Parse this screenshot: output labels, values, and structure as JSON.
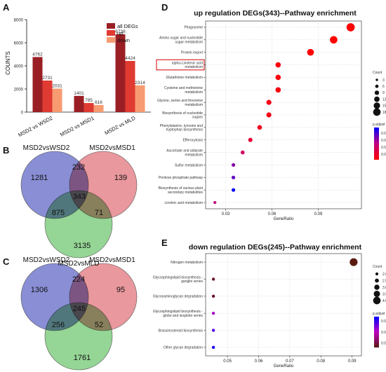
{
  "panels": {
    "a": "A",
    "b": "B",
    "c": "C",
    "d": "D",
    "e": "E"
  },
  "colors": {
    "all": "#9a1f25",
    "up": "#e03b32",
    "down": "#f79b72",
    "venn_wsd2": "#5c63c5",
    "venn_msd1": "#e07077",
    "venn_mld": "#6cc56c",
    "highlight_box": "#d40000"
  },
  "chart_data": [
    {
      "type": "bar",
      "title": "",
      "xlabel": "",
      "ylabel": "COUNTS",
      "ylim": [
        0,
        8000
      ],
      "yticks": [
        0,
        2000,
        4000,
        6000,
        8000
      ],
      "categories": [
        "MSD2 vs WSD2",
        "MSD2 vs MSD1",
        "MSD2 vs MLD"
      ],
      "series": [
        {
          "name": "all DEGs",
          "values": [
            4762,
            1401,
            6738
          ]
        },
        {
          "name": "up",
          "values": [
            2731,
            785,
            4424
          ]
        },
        {
          "name": "down",
          "values": [
            2031,
            616,
            2314
          ]
        }
      ],
      "legend": "top-right"
    },
    {
      "type": "venn",
      "sets": [
        "MSD2vsWSD2",
        "MSD2vsMSD1",
        "MSD2vsMLD"
      ],
      "regions": {
        "wsd2_only": 1281,
        "msd1_only": 139,
        "mld_only": 3135,
        "wsd2_msd1": 232,
        "wsd2_mld": 875,
        "msd1_mld": 71,
        "all_three": 343
      }
    },
    {
      "type": "venn",
      "sets": [
        "MSD2vsWSD2",
        "MSD2vsMSD1",
        "MSD2vsMLD"
      ],
      "regions": {
        "wsd2_only": 1306,
        "msd1_only": 95,
        "mld_only": 1761,
        "wsd2_msd1": 224,
        "wsd2_mld": 256,
        "msd1_mld": 52,
        "all_three": 245
      }
    },
    {
      "type": "scatter",
      "title": "up regulation DEGs(343)--Pathway enrichment",
      "xlabel": "GeneRatio",
      "ylabel": "",
      "xlim": [
        0.017,
        0.118
      ],
      "xticks": [
        0.03,
        0.06,
        0.09
      ],
      "highlighted": "alpha-Linolenic acid metabolism",
      "points": [
        {
          "pathway": "Phagosome",
          "x": 0.111,
          "count": 19,
          "p_adjust": 0.0005
        },
        {
          "pathway": "Amino sugar and nucleotide sugar metabolism",
          "x": 0.1,
          "count": 17,
          "p_adjust": 0.001
        },
        {
          "pathway": "Protein export",
          "x": 0.085,
          "count": 15,
          "p_adjust": 0.001
        },
        {
          "pathway": "alpha-Linolenic acid metabolism",
          "x": 0.064,
          "count": 11,
          "p_adjust": 0.002
        },
        {
          "pathway": "Glutathione metabolism",
          "x": 0.064,
          "count": 11,
          "p_adjust": 0.002
        },
        {
          "pathway": "Cysteine and methionine metabolism",
          "x": 0.064,
          "count": 11,
          "p_adjust": 0.002
        },
        {
          "pathway": "Glycine, serine and threonine metabolism",
          "x": 0.058,
          "count": 10,
          "p_adjust": 0.003
        },
        {
          "pathway": "Biosynthesis of nucleotide sugars",
          "x": 0.058,
          "count": 10,
          "p_adjust": 0.003
        },
        {
          "pathway": "Phenylalanine, tyrosine and tryptophan biosynthesis",
          "x": 0.052,
          "count": 9,
          "p_adjust": 0.004
        },
        {
          "pathway": "Efferocytosis",
          "x": 0.046,
          "count": 8,
          "p_adjust": 0.006
        },
        {
          "pathway": "Ascorbate and aldarate metabolism",
          "x": 0.041,
          "count": 7,
          "p_adjust": 0.01
        },
        {
          "pathway": "Sulfur metabolism",
          "x": 0.035,
          "count": 6,
          "p_adjust": 0.016
        },
        {
          "pathway": "Pentose phosphate pathway",
          "x": 0.035,
          "count": 6,
          "p_adjust": 0.018
        },
        {
          "pathway": "Biosynthesis of various plant secondary metabolites",
          "x": 0.035,
          "count": 6,
          "p_adjust": 0.024
        },
        {
          "pathway": "Linoleic acid metabolism",
          "x": 0.023,
          "count": 4,
          "p_adjust": 0.012
        }
      ],
      "size_legend": {
        "title": "Count",
        "values": [
          3,
          6,
          9,
          12,
          15,
          18
        ]
      },
      "color_legend": {
        "title": "p.adjust",
        "ticks": [
          0.02,
          0.015,
          0.01,
          0.005
        ],
        "tick_labels": [
          "0.020",
          "0.015",
          "0.010",
          "0.005"
        ],
        "range": [
          0.001,
          0.024
        ],
        "colors": [
          "#ff0000",
          "#c0007f",
          "#0000ff"
        ]
      }
    },
    {
      "type": "scatter",
      "title": "down regulation DEGs(245)--Pathway enrichment",
      "xlabel": "GeneRatio",
      "ylabel": "",
      "xlim": [
        0.043,
        0.093
      ],
      "xticks": [
        0.05,
        0.06,
        0.07,
        0.08,
        0.09
      ],
      "points": [
        {
          "pathway": "Nitrogen metabolism",
          "x": 0.0905,
          "count": 4,
          "p_adjust": 0.008
        },
        {
          "pathway": "Glycosphingolipid biosynthesis - ganglio series",
          "x": 0.0455,
          "count": 2,
          "p_adjust": 0.009
        },
        {
          "pathway": "Glycosaminoglycan degradation",
          "x": 0.0455,
          "count": 2,
          "p_adjust": 0.009
        },
        {
          "pathway": "Glycosphingolipid biosynthesis - globo and isoglobo series",
          "x": 0.0455,
          "count": 2,
          "p_adjust": 0.016
        },
        {
          "pathway": "Brassinosteroid biosynthesis",
          "x": 0.0455,
          "count": 2,
          "p_adjust": 0.019
        },
        {
          "pathway": "Other glycan degradation",
          "x": 0.0455,
          "count": 2,
          "p_adjust": 0.021
        }
      ],
      "size_legend": {
        "title": "Count",
        "values": [
          2,
          2.5,
          3,
          3.5,
          4
        ],
        "labels": [
          "2.0",
          "2.5",
          "3.0",
          "3.5",
          "4.0"
        ]
      },
      "color_legend": {
        "title": "p.adjust",
        "ticks": [
          0.02,
          0.015,
          0.01
        ],
        "tick_labels": [
          "0.020",
          "0.015",
          "0.010"
        ],
        "range": [
          0.008,
          0.022
        ],
        "colors": [
          "#5a1a10",
          "#c000c0",
          "#0000ff"
        ]
      }
    }
  ]
}
